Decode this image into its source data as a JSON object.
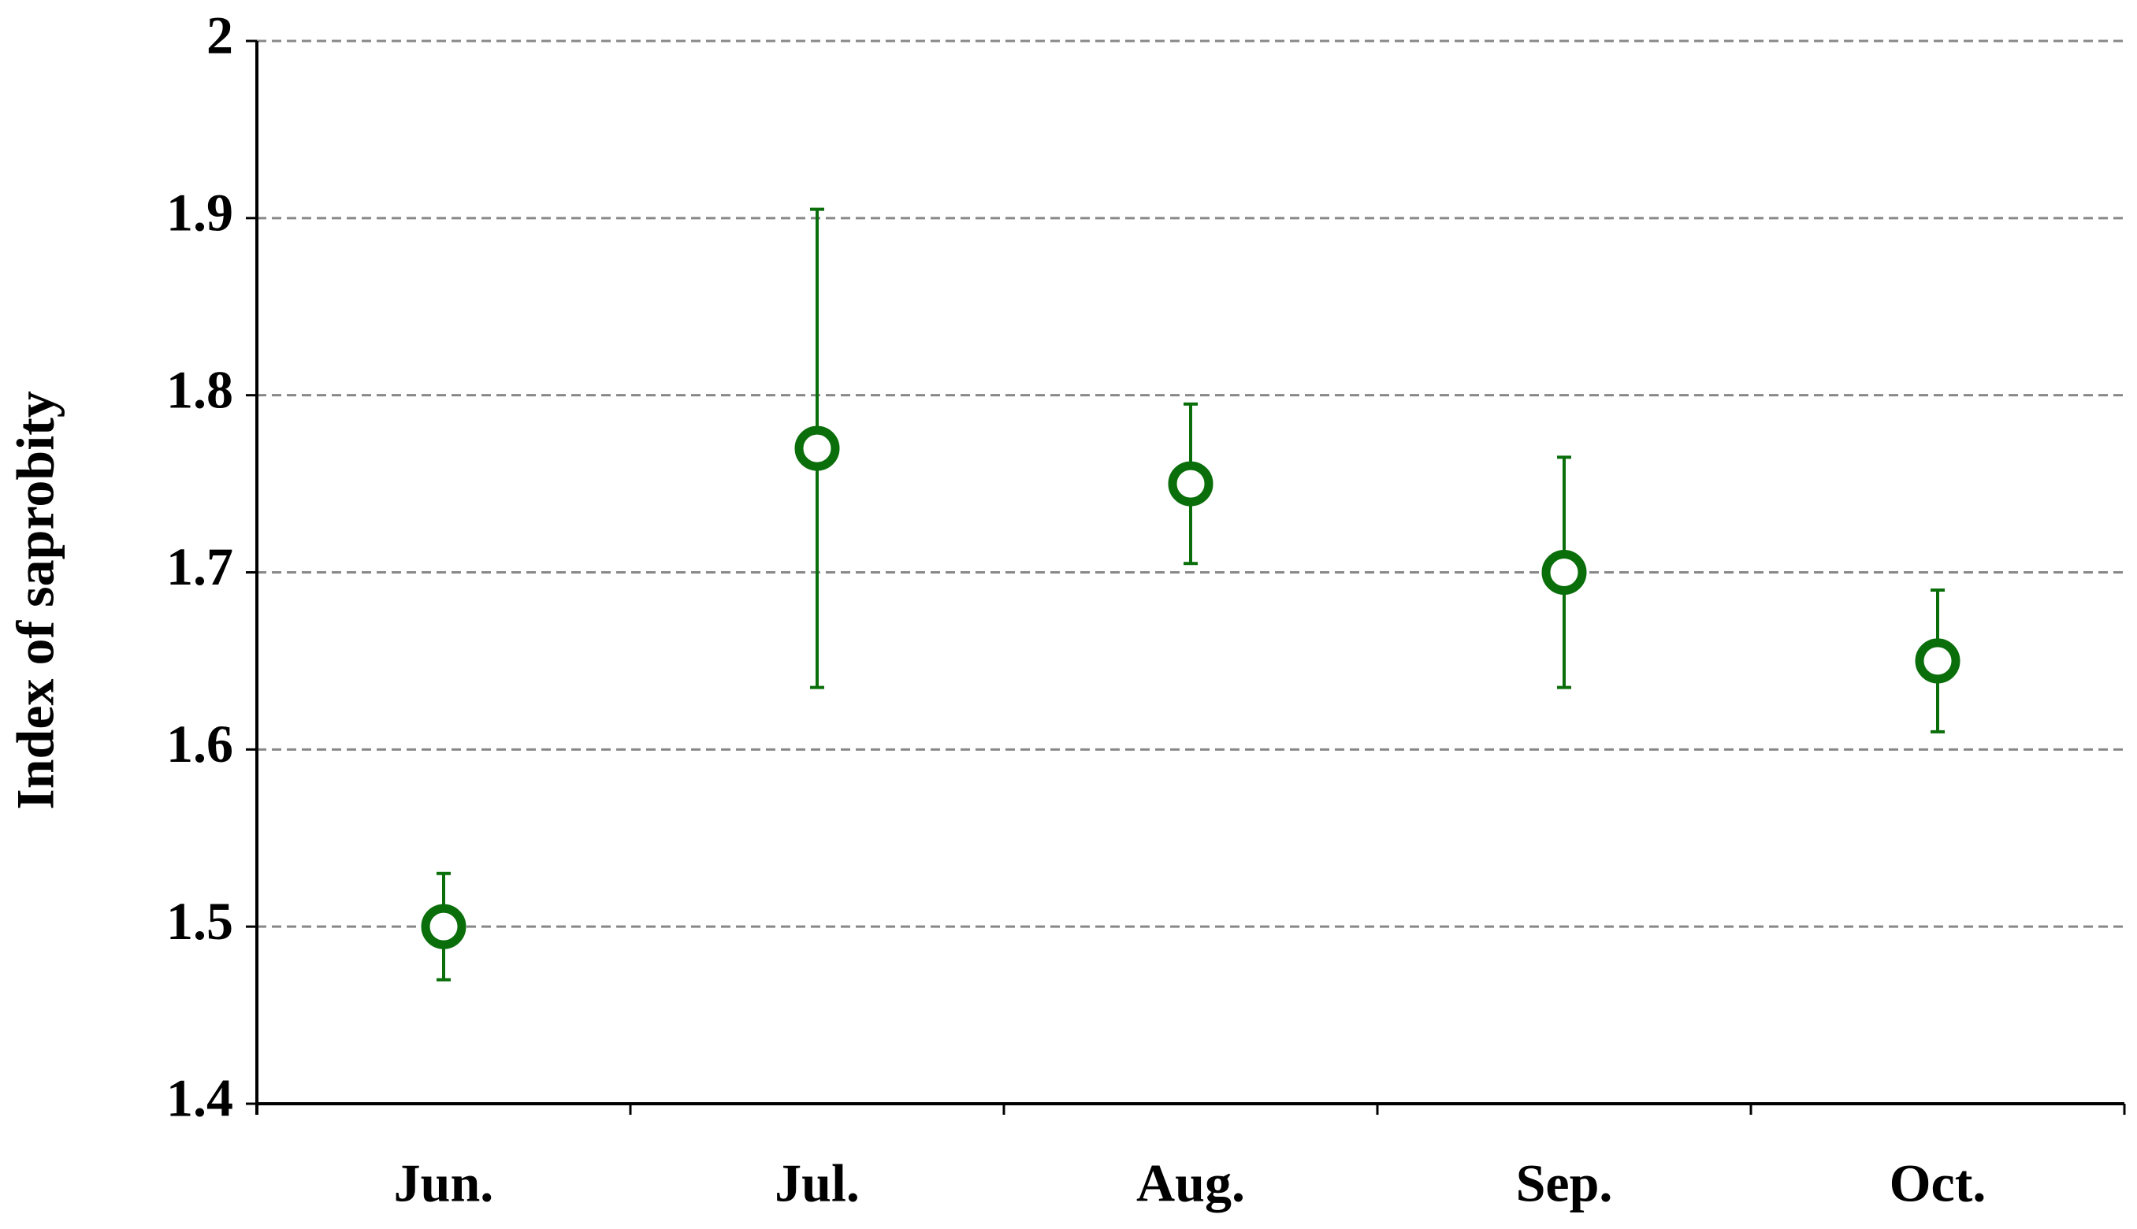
{
  "chart_data": {
    "type": "errorbar",
    "y_label": "Index of saprobity",
    "categories": [
      "Jun.",
      "Jul.",
      "Aug.",
      "Sep.",
      "Oct."
    ],
    "values": [
      1.5,
      1.77,
      1.75,
      1.7,
      1.65
    ],
    "errors": [
      0.03,
      0.135,
      0.045,
      0.065,
      0.04
    ],
    "color": "#0a6e0a",
    "ylim": [
      1.4,
      2
    ],
    "yticks": [
      1.4,
      1.5,
      1.6,
      1.7,
      1.8,
      1.9,
      2
    ],
    "grid": true
  }
}
